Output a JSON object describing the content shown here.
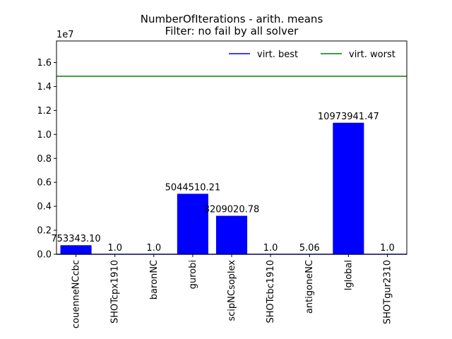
{
  "chart_data": {
    "type": "bar",
    "title": "NumberOfIterations - arith. means",
    "subtitle": "Filter: no fail by all solver",
    "xlabel": "",
    "ylabel": "",
    "y_multiplier": "1e7",
    "ylim": [
      0,
      17800000
    ],
    "yticks": [
      0,
      2000000,
      4000000,
      6000000,
      8000000,
      10000000,
      12000000,
      14000000,
      16000000
    ],
    "ytick_labels": [
      "0.0",
      "0.2",
      "0.4",
      "0.6",
      "0.8",
      "1.0",
      "1.2",
      "1.4",
      "1.6"
    ],
    "categories": [
      "couenneNCcbc",
      "SHOTcpx1910",
      "baronNC",
      "gurobi",
      "scipNCsoplex",
      "SHOTcbc1910",
      "antigoneNC",
      "lglobal",
      "SHOTgur2310"
    ],
    "values": [
      753343.1,
      1.0,
      1.0,
      5044510.21,
      3209020.78,
      1.0,
      5.06,
      10973941.47,
      1.0
    ],
    "data_labels": [
      "753343.10",
      "1.0",
      "1.0",
      "5044510.21",
      "3209020.78",
      "1.0",
      "5.06",
      "10973941.47",
      "1.0"
    ],
    "bar_color": "#0000ff",
    "reference_lines": [
      {
        "name": "virt. best",
        "value": 1.0,
        "color": "#0000ff"
      },
      {
        "name": "virt. worst",
        "value": 14850000,
        "color": "#008000"
      }
    ],
    "legend": {
      "placement": "top-right"
    },
    "grid": false
  }
}
